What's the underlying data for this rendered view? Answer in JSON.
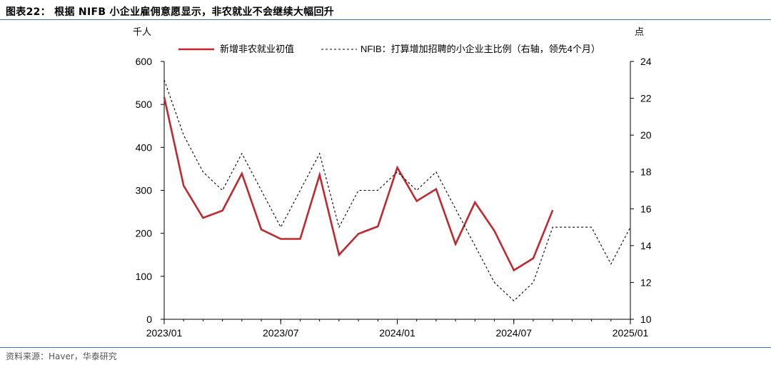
{
  "header": {
    "title": "图表22： 根据 NIFB 小企业雇佣意愿显示，非农就业不会继续大幅回升"
  },
  "footer": {
    "source": "资料来源：Haver，华泰研究"
  },
  "chart_data": {
    "type": "line",
    "x_axis": {
      "start": "2023/01",
      "end": "2025/01",
      "tick_labels": [
        "2023/01",
        "2023/07",
        "2024/01",
        "2024/07",
        "2025/01"
      ]
    },
    "y_left": {
      "unit": "千人",
      "min": 0,
      "max": 600,
      "ticks": [
        0,
        100,
        200,
        300,
        400,
        500,
        600
      ]
    },
    "y_right": {
      "unit": "点",
      "min": 10,
      "max": 24,
      "ticks": [
        10,
        12,
        14,
        16,
        18,
        20,
        22,
        24
      ]
    },
    "legend_position": "top",
    "series": [
      {
        "name": "新增非农就业初值",
        "axis": "left",
        "color": "#c0282e",
        "style": "solid",
        "x": [
          "2023/01",
          "2023/02",
          "2023/03",
          "2023/04",
          "2023/05",
          "2023/06",
          "2023/07",
          "2023/08",
          "2023/09",
          "2023/10",
          "2023/11",
          "2023/12",
          "2024/01",
          "2024/02",
          "2024/03",
          "2024/04",
          "2024/05",
          "2024/06",
          "2024/07",
          "2024/08",
          "2024/09"
        ],
        "values": [
          517,
          311,
          236,
          253,
          339,
          209,
          187,
          187,
          336,
          150,
          199,
          216,
          353,
          275,
          303,
          175,
          272,
          206,
          114,
          142,
          254
        ]
      },
      {
        "name": "NFIB：打算增加招聘的小企业主比例（右轴，领先4个月）",
        "axis": "right",
        "color": "#000000",
        "style": "dashed",
        "x": [
          "2023/01",
          "2023/02",
          "2023/03",
          "2023/04",
          "2023/05",
          "2023/06",
          "2023/07",
          "2023/08",
          "2023/09",
          "2023/10",
          "2023/11",
          "2023/12",
          "2024/01",
          "2024/02",
          "2024/03",
          "2024/04",
          "2024/05",
          "2024/06",
          "2024/07",
          "2024/08",
          "2024/09",
          "2024/10",
          "2024/11",
          "2024/12",
          "2025/01"
        ],
        "values": [
          23,
          20,
          18,
          17,
          19,
          17,
          15,
          17,
          19,
          15,
          17,
          17,
          18,
          17,
          18,
          16,
          14,
          12,
          11,
          12,
          15,
          15,
          15,
          13,
          15
        ]
      }
    ]
  }
}
